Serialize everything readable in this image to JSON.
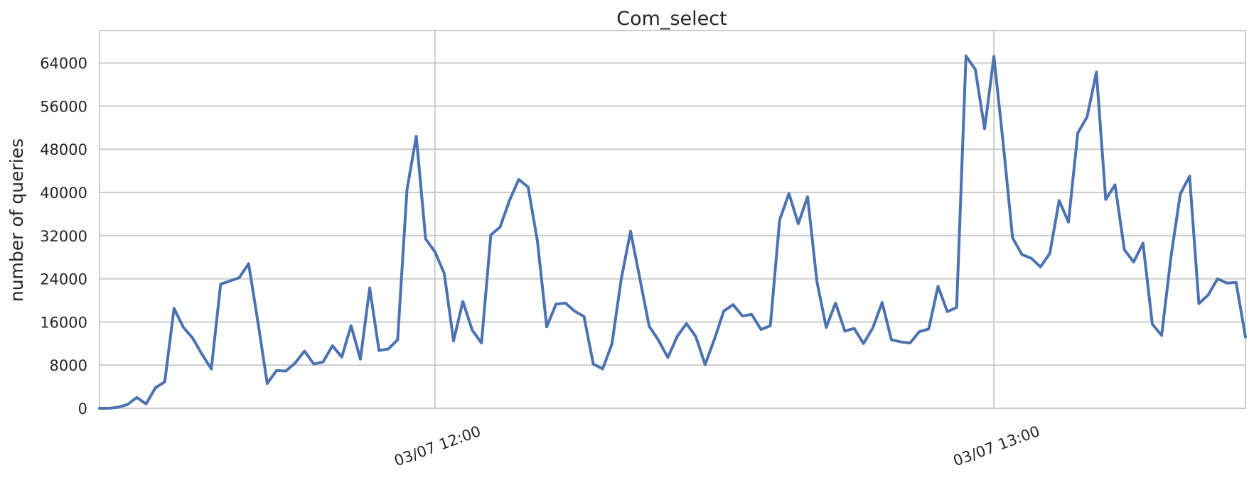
{
  "chart_data": {
    "type": "line",
    "title": "Com_select",
    "xlabel": "",
    "ylabel": "number of queries",
    "ylim": [
      0,
      70000
    ],
    "yticks": [
      0,
      8000,
      16000,
      24000,
      32000,
      40000,
      48000,
      56000,
      64000
    ],
    "ytick_labels": [
      "0",
      "8000",
      "16000",
      "24000",
      "32000",
      "40000",
      "48000",
      "56000",
      "64000"
    ],
    "xlim": [
      "03/07 11:24",
      "03/07 13:27"
    ],
    "xticks": [
      "03/07 12:00",
      "03/07 13:00"
    ],
    "xtick_labels": [
      "03/07 12:00",
      "03/07 13:00"
    ],
    "grid": true,
    "color": "#4c72b0",
    "x": [
      "03/07 11:24",
      "03/07 11:25",
      "03/07 11:26",
      "03/07 11:27",
      "03/07 11:28",
      "03/07 11:29",
      "03/07 11:30",
      "03/07 11:31",
      "03/07 11:32",
      "03/07 11:33",
      "03/07 11:34",
      "03/07 11:35",
      "03/07 11:36",
      "03/07 11:37",
      "03/07 11:38",
      "03/07 11:39",
      "03/07 11:40",
      "03/07 11:41",
      "03/07 11:42",
      "03/07 11:43",
      "03/07 11:44",
      "03/07 11:45",
      "03/07 11:46",
      "03/07 11:47",
      "03/07 11:48",
      "03/07 11:49",
      "03/07 11:50",
      "03/07 11:51",
      "03/07 11:52",
      "03/07 11:53",
      "03/07 11:54",
      "03/07 11:55",
      "03/07 11:56",
      "03/07 11:57",
      "03/07 11:58",
      "03/07 11:59",
      "03/07 12:00",
      "03/07 12:01",
      "03/07 12:02",
      "03/07 12:03",
      "03/07 12:04",
      "03/07 12:05",
      "03/07 12:06",
      "03/07 12:07",
      "03/07 12:08",
      "03/07 12:09",
      "03/07 12:10",
      "03/07 12:11",
      "03/07 12:12",
      "03/07 12:13",
      "03/07 12:14",
      "03/07 12:15",
      "03/07 12:16",
      "03/07 12:17",
      "03/07 12:18",
      "03/07 12:19",
      "03/07 12:20",
      "03/07 12:21",
      "03/07 12:22",
      "03/07 12:23",
      "03/07 12:24",
      "03/07 12:25",
      "03/07 12:26",
      "03/07 12:27",
      "03/07 12:28",
      "03/07 12:29",
      "03/07 12:30",
      "03/07 12:31",
      "03/07 12:32",
      "03/07 12:33",
      "03/07 12:34",
      "03/07 12:35",
      "03/07 12:36",
      "03/07 12:37",
      "03/07 12:38",
      "03/07 12:39",
      "03/07 12:40",
      "03/07 12:41",
      "03/07 12:42",
      "03/07 12:43",
      "03/07 12:44",
      "03/07 12:45",
      "03/07 12:46",
      "03/07 12:47",
      "03/07 12:48",
      "03/07 12:49",
      "03/07 12:50",
      "03/07 12:51",
      "03/07 12:52",
      "03/07 12:53",
      "03/07 12:54",
      "03/07 12:55",
      "03/07 12:56",
      "03/07 12:57",
      "03/07 12:58",
      "03/07 12:59",
      "03/07 13:00",
      "03/07 13:01",
      "03/07 13:02",
      "03/07 13:03",
      "03/07 13:04",
      "03/07 13:05",
      "03/07 13:06",
      "03/07 13:07",
      "03/07 13:08",
      "03/07 13:09",
      "03/07 13:10",
      "03/07 13:11",
      "03/07 13:12",
      "03/07 13:13",
      "03/07 13:14",
      "03/07 13:15",
      "03/07 13:16",
      "03/07 13:17",
      "03/07 13:18",
      "03/07 13:19",
      "03/07 13:20",
      "03/07 13:21",
      "03/07 13:22",
      "03/07 13:23",
      "03/07 13:24",
      "03/07 13:25",
      "03/07 13:26",
      "03/07 13:27"
    ],
    "y": [
      0,
      0,
      200,
      700,
      2000,
      800,
      3800,
      4900,
      18500,
      15000,
      13000,
      10000,
      7300,
      23000,
      23600,
      24200,
      26800,
      16000,
      4600,
      7000,
      6900,
      8400,
      10600,
      8200,
      8600,
      11600,
      9500,
      15300,
      9100,
      22300,
      10700,
      11000,
      12700,
      40500,
      50400,
      31400,
      29000,
      25000,
      12500,
      19800,
      14500,
      12100,
      32100,
      33600,
      38500,
      42400,
      41000,
      31000,
      15100,
      19300,
      19500,
      18000,
      17000,
      8200,
      7300,
      11900,
      24000,
      32800,
      24000,
      15200,
      12600,
      9400,
      13300,
      15700,
      13300,
      8100,
      12800,
      18000,
      19200,
      17100,
      17400,
      14600,
      15300,
      34900,
      39800,
      34200,
      39200,
      23500,
      15000,
      19500,
      14300,
      14800,
      12000,
      14900,
      19600,
      12700,
      12300,
      12100,
      14200,
      14700,
      22600,
      17900,
      18700,
      65300,
      62800,
      51800,
      65200,
      49000,
      31600,
      28500,
      27800,
      26200,
      28700,
      38500,
      34500,
      51000,
      54000,
      62300,
      38700,
      41400,
      29400,
      27100,
      30600,
      15600,
      13500,
      28000,
      39700,
      43000,
      19400,
      21000,
      24000,
      23200,
      23300,
      13200
    ]
  }
}
